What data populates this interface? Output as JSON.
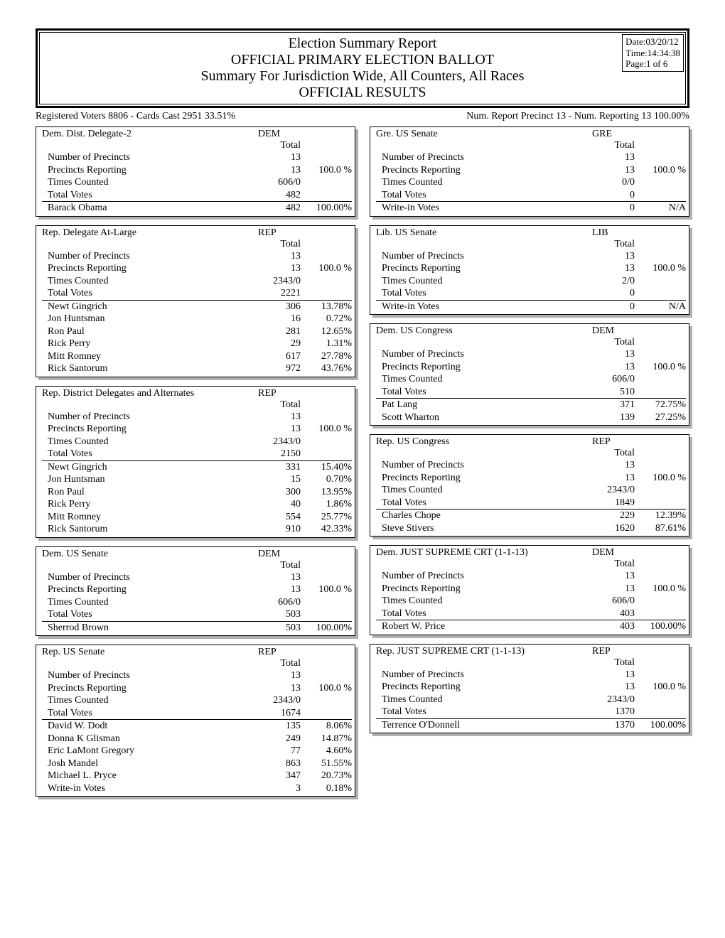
{
  "header": {
    "title1": "Election Summary Report",
    "title2": "OFFICIAL PRIMARY ELECTION BALLOT",
    "title3": "Summary For Jurisdiction Wide, All Counters, All Races",
    "title4": "OFFICIAL RESULTS",
    "date": "Date:03/20/12",
    "time": "Time:14:34:38",
    "page": "Page:1 of 6"
  },
  "summary": {
    "left": "Registered Voters 8806 - Cards Cast 2951   33.51%",
    "right": "Num. Report Precinct 13 - Num. Reporting 13    100.00%"
  },
  "left_races": [
    {
      "title": "Dem. Dist. Delegate-2",
      "party": "DEM",
      "stats": [
        {
          "label": "Number of Precincts",
          "num": "13",
          "pct": ""
        },
        {
          "label": "Precincts Reporting",
          "num": "13",
          "pct": "100.0 %"
        },
        {
          "label": "Times Counted",
          "num": "606/0",
          "pct": ""
        },
        {
          "label": "Total Votes",
          "num": "482",
          "pct": ""
        }
      ],
      "candidates": [
        {
          "label": "Barack Obama",
          "num": "482",
          "pct": "100.00%"
        }
      ]
    },
    {
      "title": "Rep. Delegate At-Large",
      "party": "REP",
      "stats": [
        {
          "label": "Number of Precincts",
          "num": "13",
          "pct": ""
        },
        {
          "label": "Precincts Reporting",
          "num": "13",
          "pct": "100.0 %"
        },
        {
          "label": "Times Counted",
          "num": "2343/0",
          "pct": ""
        },
        {
          "label": "Total Votes",
          "num": "2221",
          "pct": ""
        }
      ],
      "candidates": [
        {
          "label": "Newt Gingrich",
          "num": "306",
          "pct": "13.78%"
        },
        {
          "label": "Jon Huntsman",
          "num": "16",
          "pct": "0.72%"
        },
        {
          "label": "Ron Paul",
          "num": "281",
          "pct": "12.65%"
        },
        {
          "label": "Rick Perry",
          "num": "29",
          "pct": "1.31%"
        },
        {
          "label": "Mitt Romney",
          "num": "617",
          "pct": "27.78%"
        },
        {
          "label": "Rick Santorum",
          "num": "972",
          "pct": "43.76%"
        }
      ]
    },
    {
      "title": "Rep. District Delegates and Alternates",
      "party": "REP",
      "stats": [
        {
          "label": "Number of Precincts",
          "num": "13",
          "pct": ""
        },
        {
          "label": "Precincts Reporting",
          "num": "13",
          "pct": "100.0 %"
        },
        {
          "label": "Times Counted",
          "num": "2343/0",
          "pct": ""
        },
        {
          "label": "Total Votes",
          "num": "2150",
          "pct": ""
        }
      ],
      "candidates": [
        {
          "label": "Newt Gingrich",
          "num": "331",
          "pct": "15.40%"
        },
        {
          "label": "Jon Huntsman",
          "num": "15",
          "pct": "0.70%"
        },
        {
          "label": "Ron Paul",
          "num": "300",
          "pct": "13.95%"
        },
        {
          "label": "Rick Perry",
          "num": "40",
          "pct": "1.86%"
        },
        {
          "label": "Mitt Romney",
          "num": "554",
          "pct": "25.77%"
        },
        {
          "label": "Rick Santorum",
          "num": "910",
          "pct": "42.33%"
        }
      ]
    },
    {
      "title": "Dem. US Senate",
      "party": "DEM",
      "stats": [
        {
          "label": "Number of Precincts",
          "num": "13",
          "pct": ""
        },
        {
          "label": "Precincts Reporting",
          "num": "13",
          "pct": "100.0 %"
        },
        {
          "label": "Times Counted",
          "num": "606/0",
          "pct": ""
        },
        {
          "label": "Total Votes",
          "num": "503",
          "pct": ""
        }
      ],
      "candidates": [
        {
          "label": "Sherrod Brown",
          "num": "503",
          "pct": "100.00%"
        }
      ]
    },
    {
      "title": "Rep. US Senate",
      "party": "REP",
      "stats": [
        {
          "label": "Number of Precincts",
          "num": "13",
          "pct": ""
        },
        {
          "label": "Precincts Reporting",
          "num": "13",
          "pct": "100.0 %"
        },
        {
          "label": "Times Counted",
          "num": "2343/0",
          "pct": ""
        },
        {
          "label": "Total Votes",
          "num": "1674",
          "pct": ""
        }
      ],
      "candidates": [
        {
          "label": "David W. Dodt",
          "num": "135",
          "pct": "8.06%"
        },
        {
          "label": "Donna K Glisman",
          "num": "249",
          "pct": "14.87%"
        },
        {
          "label": "Eric LaMont Gregory",
          "num": "77",
          "pct": "4.60%"
        },
        {
          "label": "Josh Mandel",
          "num": "863",
          "pct": "51.55%"
        },
        {
          "label": "Michael L. Pryce",
          "num": "347",
          "pct": "20.73%"
        },
        {
          "label": "Write-in Votes",
          "num": "3",
          "pct": "0.18%"
        }
      ]
    }
  ],
  "right_races": [
    {
      "title": "Gre. US Senate",
      "party": "GRE",
      "stats": [
        {
          "label": "Number of Precincts",
          "num": "13",
          "pct": ""
        },
        {
          "label": "Precincts Reporting",
          "num": "13",
          "pct": "100.0 %"
        },
        {
          "label": "Times Counted",
          "num": "0/0",
          "pct": ""
        },
        {
          "label": "Total Votes",
          "num": "0",
          "pct": ""
        }
      ],
      "candidates": [
        {
          "label": "Write-in Votes",
          "num": "0",
          "pct": "N/A"
        }
      ]
    },
    {
      "title": "Lib. US Senate",
      "party": "LIB",
      "stats": [
        {
          "label": "Number of Precincts",
          "num": "13",
          "pct": ""
        },
        {
          "label": "Precincts Reporting",
          "num": "13",
          "pct": "100.0 %"
        },
        {
          "label": "Times Counted",
          "num": "2/0",
          "pct": ""
        },
        {
          "label": "Total Votes",
          "num": "0",
          "pct": ""
        }
      ],
      "candidates": [
        {
          "label": "Write-in Votes",
          "num": "0",
          "pct": "N/A"
        }
      ]
    },
    {
      "title": "Dem. US Congress",
      "party": "DEM",
      "stats": [
        {
          "label": "Number of Precincts",
          "num": "13",
          "pct": ""
        },
        {
          "label": "Precincts Reporting",
          "num": "13",
          "pct": "100.0 %"
        },
        {
          "label": "Times Counted",
          "num": "606/0",
          "pct": ""
        },
        {
          "label": "Total Votes",
          "num": "510",
          "pct": ""
        }
      ],
      "candidates": [
        {
          "label": "Pat Lang",
          "num": "371",
          "pct": "72.75%"
        },
        {
          "label": "Scott Wharton",
          "num": "139",
          "pct": "27.25%"
        }
      ]
    },
    {
      "title": "Rep. US Congress",
      "party": "REP",
      "stats": [
        {
          "label": "Number of Precincts",
          "num": "13",
          "pct": ""
        },
        {
          "label": "Precincts Reporting",
          "num": "13",
          "pct": "100.0 %"
        },
        {
          "label": "Times Counted",
          "num": "2343/0",
          "pct": ""
        },
        {
          "label": "Total Votes",
          "num": "1849",
          "pct": ""
        }
      ],
      "candidates": [
        {
          "label": "Charles Chope",
          "num": "229",
          "pct": "12.39%"
        },
        {
          "label": "Steve Stivers",
          "num": "1620",
          "pct": "87.61%"
        }
      ]
    },
    {
      "title": "Dem. JUST SUPREME CRT (1-1-13)",
      "party": "DEM",
      "stats": [
        {
          "label": "Number of Precincts",
          "num": "13",
          "pct": ""
        },
        {
          "label": "Precincts Reporting",
          "num": "13",
          "pct": "100.0 %"
        },
        {
          "label": "Times Counted",
          "num": "606/0",
          "pct": ""
        },
        {
          "label": "Total Votes",
          "num": "403",
          "pct": ""
        }
      ],
      "candidates": [
        {
          "label": "Robert W. Price",
          "num": "403",
          "pct": "100.00%"
        }
      ]
    },
    {
      "title": "Rep. JUST SUPREME CRT (1-1-13)",
      "party": "REP",
      "stats": [
        {
          "label": "Number of Precincts",
          "num": "13",
          "pct": ""
        },
        {
          "label": "Precincts Reporting",
          "num": "13",
          "pct": "100.0 %"
        },
        {
          "label": "Times Counted",
          "num": "2343/0",
          "pct": ""
        },
        {
          "label": "Total Votes",
          "num": "1370",
          "pct": ""
        }
      ],
      "candidates": [
        {
          "label": "Terrence O'Donnell",
          "num": "1370",
          "pct": "100.00%"
        }
      ]
    }
  ],
  "labels": {
    "total": "Total"
  }
}
